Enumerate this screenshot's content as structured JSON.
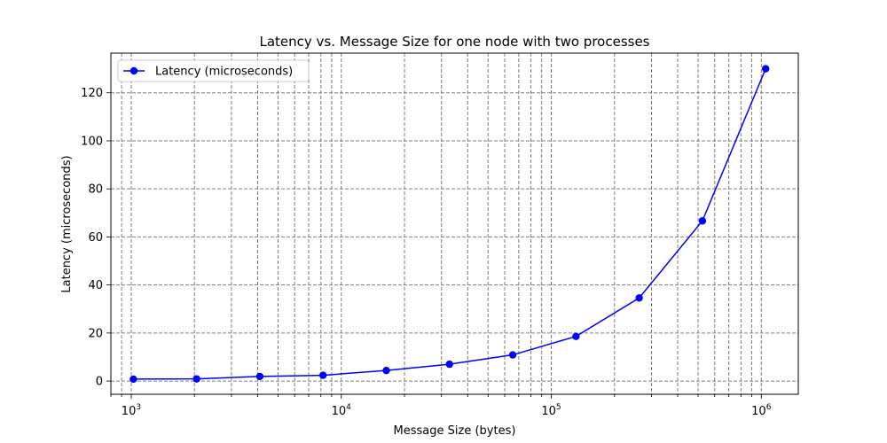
{
  "chart_data": {
    "type": "line",
    "title": "Latency vs. Message Size for one node with two processes",
    "xlabel": "Message Size (bytes)",
    "ylabel": "Latency (microseconds)",
    "x_scale": "log",
    "x_ticks": [
      {
        "value": 1000,
        "base": "10",
        "exp": "3"
      },
      {
        "value": 10000,
        "base": "10",
        "exp": "4"
      },
      {
        "value": 100000,
        "base": "10",
        "exp": "5"
      },
      {
        "value": 1000000,
        "base": "10",
        "exp": "6"
      }
    ],
    "y_ticks": [
      "0",
      "20",
      "40",
      "60",
      "80",
      "100",
      "120"
    ],
    "xlim": [
      800,
      1500000
    ],
    "ylim": [
      -5.5,
      136.5
    ],
    "grid": true,
    "legend_position": "upper-left",
    "series": [
      {
        "name": "Latency (microseconds)",
        "color": "#0000ff",
        "x": [
          1024,
          2048,
          4096,
          8192,
          16384,
          32768,
          65536,
          131072,
          262144,
          524288,
          1048576
        ],
        "y": [
          0.8,
          0.9,
          1.9,
          2.4,
          4.4,
          7.0,
          10.9,
          18.6,
          34.6,
          66.7,
          130.0
        ]
      }
    ]
  }
}
